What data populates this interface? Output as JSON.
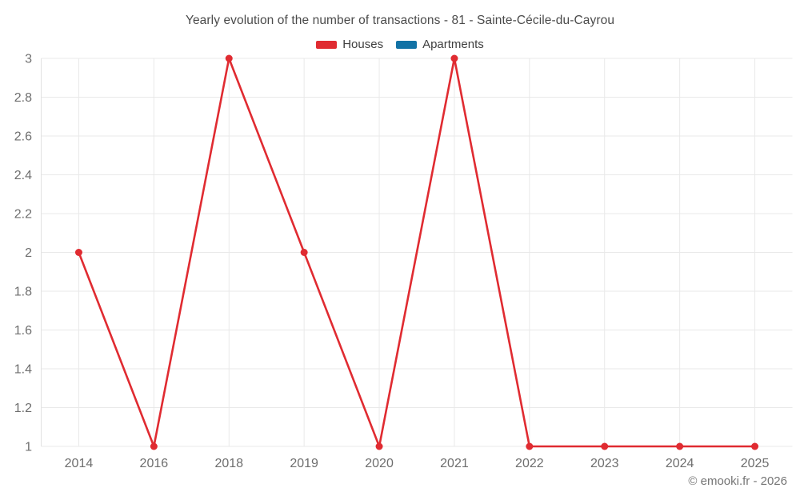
{
  "title": "Yearly evolution of the number of transactions - 81 - Sainte-Cécile-du-Cayrou",
  "legend": {
    "items": [
      {
        "label": "Houses",
        "color": "#e02b31"
      },
      {
        "label": "Apartments",
        "color": "#1272a5"
      }
    ]
  },
  "copyright": "© emooki.fr - 2026",
  "colors": {
    "grid": "#e9e9e9",
    "axis_border": "#e2e2e2",
    "tick_label": "#6e6e6e",
    "title_text": "#4b4b4b",
    "houses": "#e02b31",
    "apartments": "#1272a5"
  },
  "chart_data": {
    "type": "line",
    "categories": [
      "2014",
      "2016",
      "2018",
      "2019",
      "2020",
      "2021",
      "2022",
      "2023",
      "2024",
      "2025"
    ],
    "series": [
      {
        "name": "Houses",
        "color": "#e02b31",
        "values": [
          2,
          1,
          3,
          2,
          1,
          3,
          1,
          1,
          1,
          1
        ]
      },
      {
        "name": "Apartments",
        "color": "#1272a5",
        "values": []
      }
    ],
    "title": "Yearly evolution of the number of transactions - 81 - Sainte-Cécile-du-Cayrou",
    "xlabel": "",
    "ylabel": "",
    "ylim": [
      1,
      3
    ],
    "yticks": [
      1,
      1.2,
      1.4,
      1.6,
      1.8,
      2,
      2.2,
      2.4,
      2.6,
      2.8,
      3
    ],
    "grid": true,
    "legend_position": "top",
    "marker_radius": 4.5,
    "line_width": 2.6
  }
}
